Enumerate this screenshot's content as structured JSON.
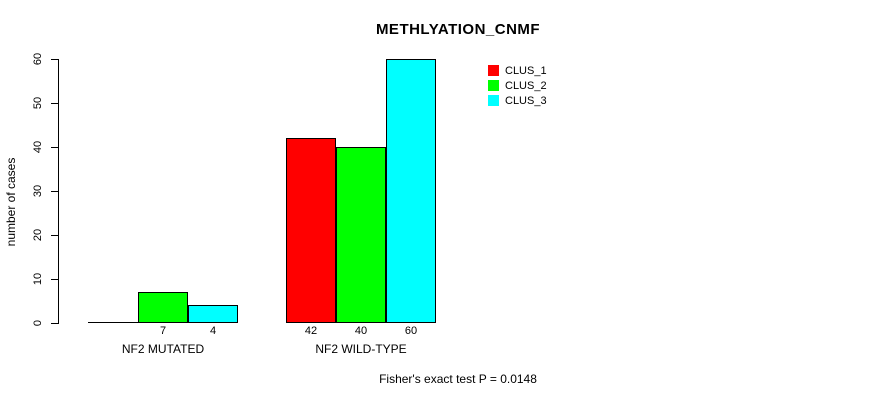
{
  "title": "METHLYATION_CNMF",
  "footer": "Fisher's exact test P = 0.0148",
  "chart_data": {
    "type": "bar",
    "title": "METHLYATION_CNMF",
    "xlabel": "",
    "ylabel": "number of cases",
    "ylim": [
      0,
      60
    ],
    "yticks": [
      0,
      10,
      20,
      30,
      40,
      50,
      60
    ],
    "grid": false,
    "categories": [
      "NF2 MUTATED",
      "NF2 WILD-TYPE"
    ],
    "series": [
      {
        "name": "CLUS_1",
        "color": "#ff0000",
        "values": [
          0,
          42
        ]
      },
      {
        "name": "CLUS_2",
        "color": "#00ff00",
        "values": [
          7,
          40
        ]
      },
      {
        "name": "CLUS_3",
        "color": "#00ffff",
        "values": [
          4,
          60
        ]
      }
    ],
    "bar_value_labels": [
      [
        "",
        "7",
        "4"
      ],
      [
        "42",
        "40",
        "60"
      ]
    ],
    "legend": {
      "position": "top-right",
      "entries": [
        "CLUS_1",
        "CLUS_2",
        "CLUS_3"
      ]
    },
    "annotation": "Fisher's exact test P = 0.0148"
  }
}
